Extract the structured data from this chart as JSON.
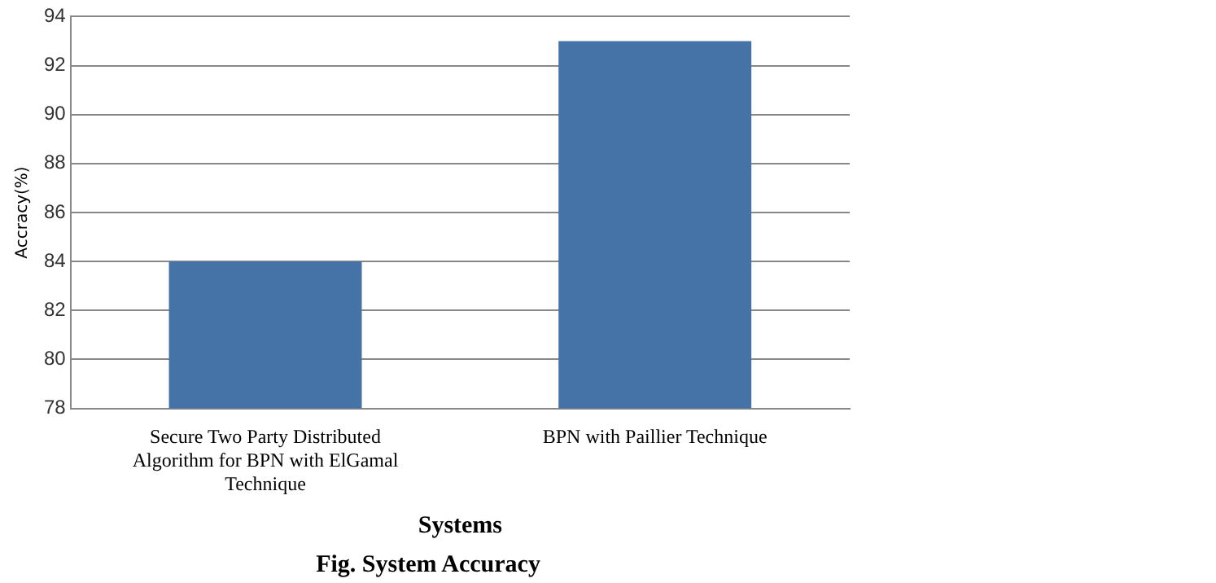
{
  "chart_data": {
    "type": "bar",
    "title": "Fig. System Accuracy",
    "xlabel": "Systems",
    "ylabel": "Accracy(%)",
    "categories": [
      "Secure Two Party Distributed Algorithm for BPN with ElGamal Technique",
      "BPN with Paillier Technique"
    ],
    "values": [
      84,
      93
    ],
    "color": "#4572a7",
    "ylim": [
      78,
      94
    ],
    "yticks": [
      78,
      80,
      82,
      84,
      86,
      88,
      90,
      92,
      94
    ],
    "grid": "y",
    "legend": false
  }
}
